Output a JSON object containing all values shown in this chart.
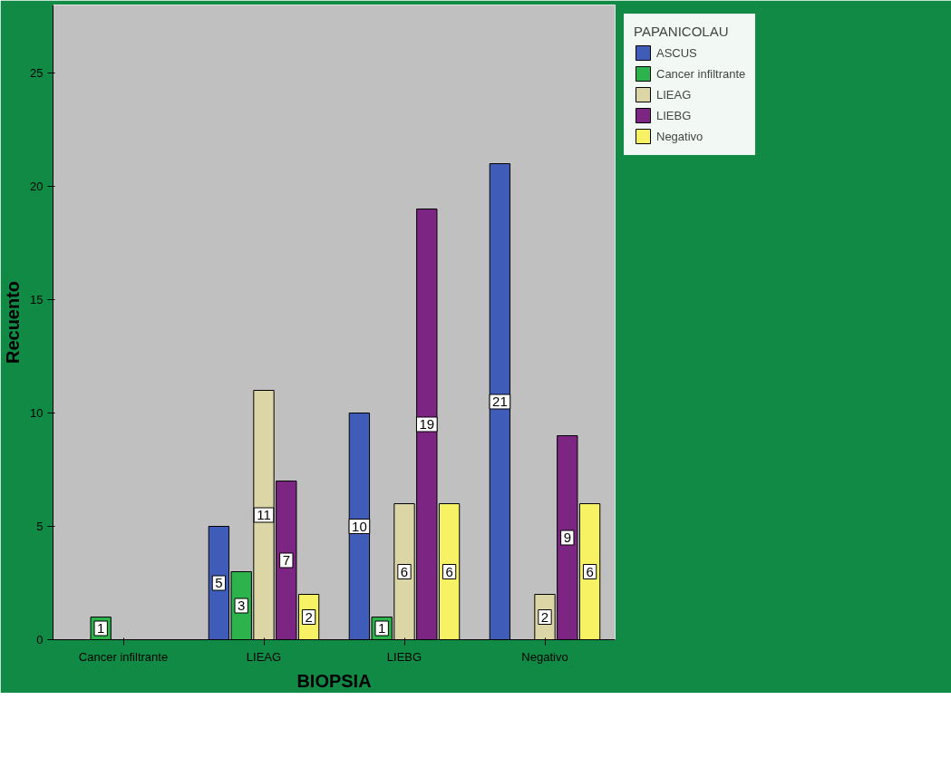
{
  "chart_data": {
    "type": "bar",
    "xlabel": "BIOPSIA",
    "ylabel": "Recuento",
    "legend_title": "PAPANICOLAU",
    "categories": [
      "Cancer infiltrante",
      "LIEAG",
      "LIEBG",
      "Negativo"
    ],
    "series": [
      {
        "name": "ASCUS",
        "color": "#3f5cb8",
        "values": [
          null,
          5,
          10,
          21
        ]
      },
      {
        "name": "Cancer infiltrante",
        "color": "#2db34c",
        "values": [
          1,
          3,
          1,
          null
        ]
      },
      {
        "name": "LIEAG",
        "color": "#dcd6a6",
        "values": [
          null,
          11,
          6,
          2
        ]
      },
      {
        "name": "LIEBG",
        "color": "#7c2582",
        "values": [
          null,
          7,
          19,
          9
        ]
      },
      {
        "name": "Negativo",
        "color": "#f7f264",
        "values": [
          null,
          2,
          6,
          6
        ]
      }
    ],
    "ylim": [
      0,
      28
    ],
    "yticks": [
      0,
      5,
      10,
      15,
      20,
      25
    ],
    "data_labels": true,
    "grid": false,
    "legend": "top right"
  }
}
